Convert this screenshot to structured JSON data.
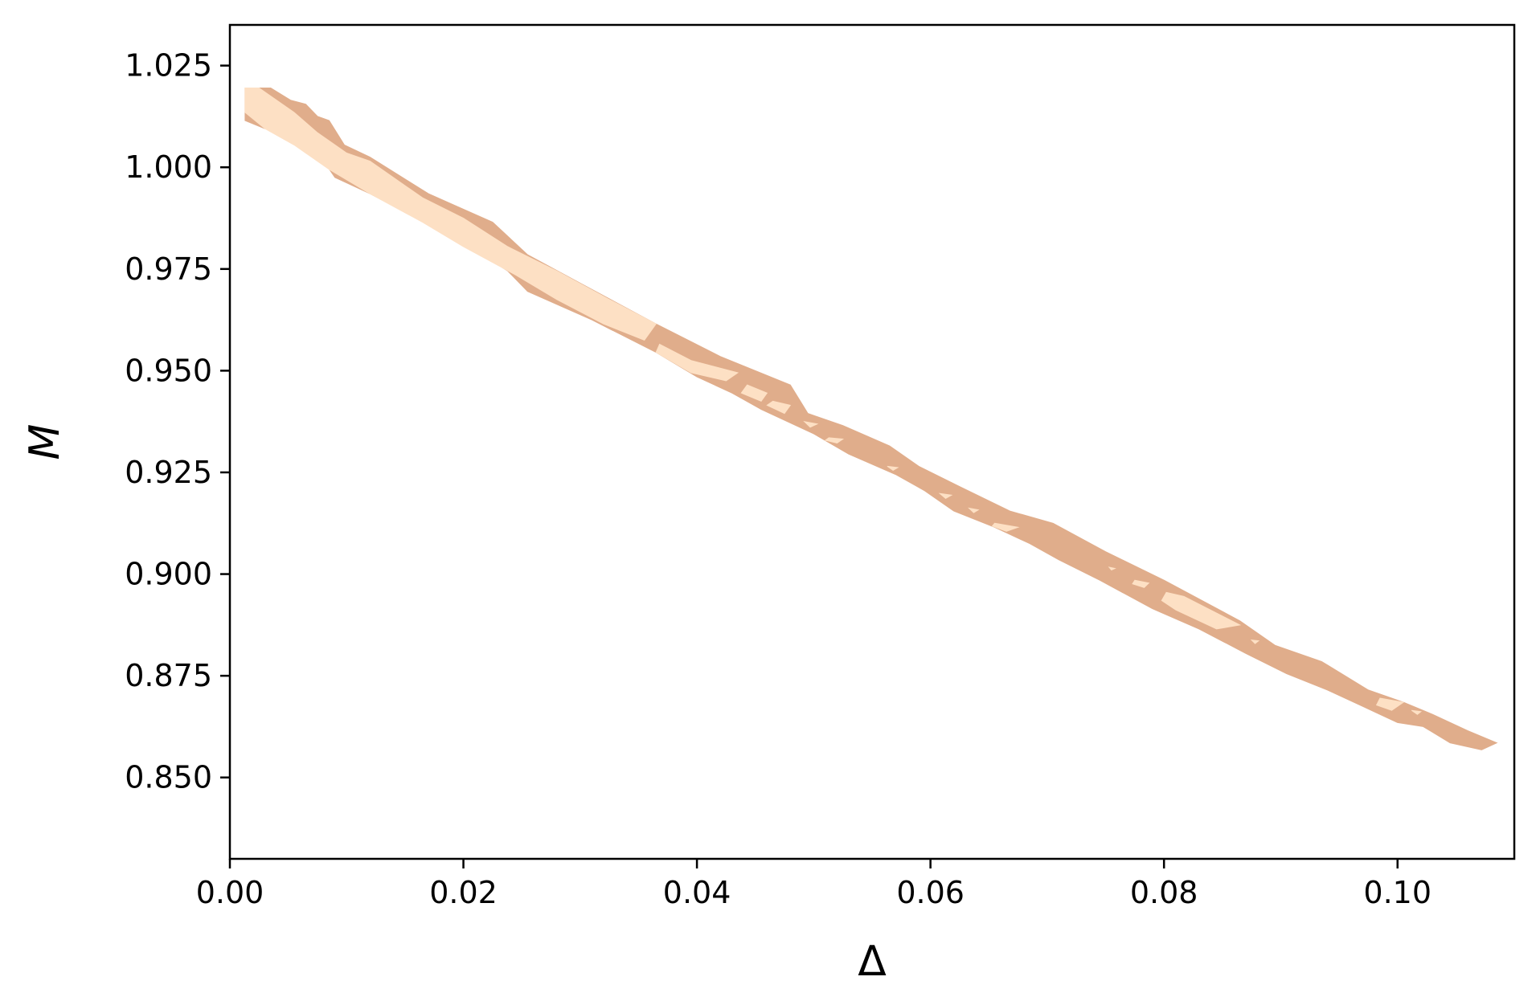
{
  "chart_data": {
    "type": "contour",
    "xlabel": "Δ",
    "ylabel": "M",
    "xlim": [
      0.0,
      0.11
    ],
    "ylim": [
      0.83,
      1.035
    ],
    "xticks": [
      0.0,
      0.02,
      0.04,
      0.06,
      0.08,
      0.1
    ],
    "xtick_labels": [
      "0.00",
      "0.02",
      "0.04",
      "0.06",
      "0.08",
      "0.10"
    ],
    "yticks": [
      0.85,
      0.875,
      0.9,
      0.925,
      0.95,
      0.975,
      1.0,
      1.025
    ],
    "ytick_labels": [
      "0.850",
      "0.875",
      "0.900",
      "0.925",
      "0.950",
      "0.975",
      "1.000",
      "1.025"
    ],
    "grid": false,
    "colors": {
      "outer": "#e0ad8b",
      "inner": "#fde0c4",
      "axis": "#000000"
    },
    "levels": [
      {
        "level": "outer",
        "regions": [
          [
            [
              0.0013,
              1.0195
            ],
            [
              0.0035,
              1.0195
            ],
            [
              0.0052,
              1.0165
            ],
            [
              0.0065,
              1.0155
            ],
            [
              0.0075,
              1.0125
            ],
            [
              0.0085,
              1.0115
            ],
            [
              0.0098,
              1.0055
            ],
            [
              0.012,
              1.0025
            ],
            [
              0.017,
              0.9935
            ],
            [
              0.0225,
              0.9865
            ],
            [
              0.0255,
              0.9785
            ],
            [
              0.03,
              0.9715
            ],
            [
              0.0365,
              0.9615
            ],
            [
              0.042,
              0.9535
            ],
            [
              0.048,
              0.9465
            ],
            [
              0.0495,
              0.9395
            ],
            [
              0.0525,
              0.9365
            ],
            [
              0.0565,
              0.9315
            ],
            [
              0.059,
              0.9265
            ],
            [
              0.0625,
              0.9215
            ],
            [
              0.0668,
              0.9155
            ],
            [
              0.0705,
              0.9125
            ],
            [
              0.075,
              0.9055
            ],
            [
              0.08,
              0.8985
            ],
            [
              0.0865,
              0.8885
            ],
            [
              0.0895,
              0.8825
            ],
            [
              0.0935,
              0.8785
            ],
            [
              0.0975,
              0.8715
            ],
            [
              0.1005,
              0.8685
            ],
            [
              0.103,
              0.8655
            ],
            [
              0.106,
              0.8615
            ],
            [
              0.1085,
              0.8585
            ],
            [
              0.1072,
              0.8568
            ],
            [
              0.1045,
              0.8585
            ],
            [
              0.1022,
              0.8625
            ],
            [
              0.1,
              0.8635
            ],
            [
              0.097,
              0.8675
            ],
            [
              0.094,
              0.8715
            ],
            [
              0.0905,
              0.8755
            ],
            [
              0.087,
              0.8805
            ],
            [
              0.083,
              0.8865
            ],
            [
              0.079,
              0.8915
            ],
            [
              0.0745,
              0.8985
            ],
            [
              0.071,
              0.9035
            ],
            [
              0.0685,
              0.9075
            ],
            [
              0.0655,
              0.9115
            ],
            [
              0.062,
              0.9155
            ],
            [
              0.0595,
              0.9205
            ],
            [
              0.057,
              0.9245
            ],
            [
              0.053,
              0.9295
            ],
            [
              0.05,
              0.9345
            ],
            [
              0.0455,
              0.9405
            ],
            [
              0.043,
              0.9445
            ],
            [
              0.04,
              0.9485
            ],
            [
              0.0365,
              0.9545
            ],
            [
              0.031,
              0.9625
            ],
            [
              0.0255,
              0.9695
            ],
            [
              0.0238,
              0.9745
            ],
            [
              0.02,
              0.9815
            ],
            [
              0.016,
              0.9875
            ],
            [
              0.012,
              0.9935
            ],
            [
              0.009,
              0.9975
            ],
            [
              0.0078,
              1.0025
            ],
            [
              0.0055,
              1.0075
            ],
            [
              0.003,
              1.0095
            ],
            [
              0.0013,
              1.0115
            ]
          ]
        ]
      },
      {
        "level": "inner",
        "regions": [
          [
            [
              0.0013,
              1.0195
            ],
            [
              0.0025,
              1.0195
            ],
            [
              0.0055,
              1.0135
            ],
            [
              0.0075,
              1.0085
            ],
            [
              0.01,
              1.0035
            ],
            [
              0.012,
              1.0015
            ],
            [
              0.0165,
              0.9925
            ],
            [
              0.02,
              0.9875
            ],
            [
              0.0238,
              0.9805
            ],
            [
              0.028,
              0.9745
            ],
            [
              0.0325,
              0.9675
            ],
            [
              0.0365,
              0.9615
            ],
            [
              0.0355,
              0.9575
            ],
            [
              0.032,
              0.9615
            ],
            [
              0.028,
              0.9675
            ],
            [
              0.0245,
              0.9735
            ],
            [
              0.02,
              0.9805
            ],
            [
              0.0165,
              0.9865
            ],
            [
              0.012,
              0.9935
            ],
            [
              0.0085,
              0.9995
            ],
            [
              0.0055,
              1.0055
            ],
            [
              0.003,
              1.0095
            ],
            [
              0.0013,
              1.0135
            ]
          ],
          [
            [
              0.0368,
              0.9565
            ],
            [
              0.0395,
              0.9525
            ],
            [
              0.0435,
              0.9495
            ],
            [
              0.0425,
              0.9475
            ],
            [
              0.0395,
              0.9495
            ],
            [
              0.0365,
              0.9545
            ]
          ],
          [
            [
              0.0443,
              0.9465
            ],
            [
              0.046,
              0.9445
            ],
            [
              0.0455,
              0.9425
            ],
            [
              0.0438,
              0.9445
            ]
          ],
          [
            [
              0.0465,
              0.9425
            ],
            [
              0.048,
              0.9415
            ],
            [
              0.0475,
              0.9395
            ],
            [
              0.046,
              0.9415
            ]
          ],
          [
            [
              0.0492,
              0.9375
            ],
            [
              0.0503,
              0.9369
            ],
            [
              0.0497,
              0.9361
            ]
          ],
          [
            [
              0.0513,
              0.9335
            ],
            [
              0.0525,
              0.9332
            ],
            [
              0.052,
              0.9322
            ],
            [
              0.051,
              0.9329
            ]
          ],
          [
            [
              0.0563,
              0.9265
            ],
            [
              0.0572,
              0.9262
            ],
            [
              0.0568,
              0.9255
            ]
          ],
          [
            [
              0.0608,
              0.9198
            ],
            [
              0.0618,
              0.9194
            ],
            [
              0.0613,
              0.9186
            ]
          ],
          [
            [
              0.0633,
              0.9162
            ],
            [
              0.0641,
              0.9158
            ],
            [
              0.0637,
              0.9151
            ]
          ],
          [
            [
              0.0655,
              0.9125
            ],
            [
              0.0675,
              0.9115
            ],
            [
              0.0665,
              0.9105
            ],
            [
              0.0653,
              0.9118
            ]
          ],
          [
            [
              0.0753,
              0.9017
            ],
            [
              0.0758,
              0.9014
            ],
            [
              0.0755,
              0.901
            ]
          ],
          [
            [
              0.0775,
              0.8985
            ],
            [
              0.0787,
              0.8978
            ],
            [
              0.0783,
              0.8967
            ],
            [
              0.0773,
              0.8976
            ]
          ],
          [
            [
              0.0802,
              0.8955
            ],
            [
              0.0817,
              0.8945
            ],
            [
              0.0865,
              0.8875
            ],
            [
              0.0845,
              0.8865
            ],
            [
              0.081,
              0.8912
            ],
            [
              0.0798,
              0.8935
            ]
          ],
          [
            [
              0.0875,
              0.8838
            ],
            [
              0.0881,
              0.8836
            ],
            [
              0.0878,
              0.8829
            ]
          ],
          [
            [
              0.0985,
              0.8695
            ],
            [
              0.1005,
              0.8685
            ],
            [
              0.0995,
              0.8665
            ],
            [
              0.0982,
              0.8678
            ]
          ],
          [
            [
              0.1012,
              0.8665
            ],
            [
              0.102,
              0.8662
            ],
            [
              0.1017,
              0.8655
            ]
          ]
        ]
      }
    ]
  }
}
